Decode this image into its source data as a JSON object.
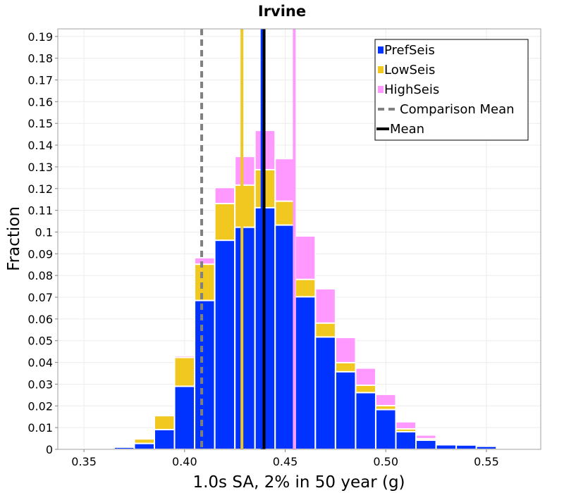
{
  "chart_data": {
    "type": "bar",
    "title": "Irvine",
    "xlabel": "1.0s SA, 2% in 50 year (g)",
    "ylabel": "Fraction",
    "xlim": [
      0.337,
      0.577
    ],
    "ylim": [
      0,
      0.1935
    ],
    "bin_width": 0.01,
    "x_ticks": [
      "0.35",
      "0.40",
      "0.45",
      "0.50",
      "0.55"
    ],
    "y_ticks": [
      "0",
      "0.01",
      "0.02",
      "0.03",
      "0.04",
      "0.05",
      "0.06",
      "0.07",
      "0.08",
      "0.09",
      "0.1",
      "0.11",
      "0.12",
      "0.13",
      "0.14",
      "0.15",
      "0.16",
      "0.17",
      "0.18",
      "0.19"
    ],
    "bin_centers": [
      0.35,
      0.36,
      0.37,
      0.38,
      0.39,
      0.4,
      0.41,
      0.42,
      0.43,
      0.44,
      0.45,
      0.46,
      0.47,
      0.48,
      0.49,
      0.5,
      0.51,
      0.52,
      0.53,
      0.54,
      0.55,
      0.56,
      0.57
    ],
    "series": [
      {
        "name": "PrefSeis",
        "color": "#0033ff",
        "values": [
          0.0002,
          0.0005,
          0.001,
          0.0027,
          0.0091,
          0.029,
          0.0685,
          0.0962,
          0.1022,
          0.1112,
          0.1032,
          0.0702,
          0.0517,
          0.0357,
          0.0261,
          0.0183,
          0.0081,
          0.0042,
          0.0021,
          0.002,
          0.0014,
          0.0003,
          0.0001
        ]
      },
      {
        "name": "LowSeis",
        "color": "#f0c820",
        "values": [
          0.0003,
          0.0007,
          0.0015,
          0.0048,
          0.0155,
          0.0423,
          0.0852,
          0.1131,
          0.1216,
          0.1287,
          0.1142,
          0.0782,
          0.0581,
          0.0399,
          0.0295,
          0.0201,
          0.0094,
          0.0049,
          0.0025,
          0.0022,
          0.0015,
          0.0004,
          0.0001
        ]
      },
      {
        "name": "HighSeis",
        "color": "#ff99ff",
        "values": [
          0.0003,
          0.0007,
          0.0015,
          0.005,
          0.0158,
          0.0431,
          0.0882,
          0.1205,
          0.1348,
          0.1468,
          0.1338,
          0.0982,
          0.0739,
          0.0515,
          0.0374,
          0.0253,
          0.0127,
          0.0066,
          0.0031,
          0.0028,
          0.0019,
          0.0005,
          0.0001
        ]
      }
    ],
    "mean_lines": [
      {
        "series": "LowSeis",
        "x": 0.4285,
        "color": "#f0c820",
        "style": "solid"
      },
      {
        "series": "HighSeis",
        "x": 0.4545,
        "color": "#ff99ff",
        "style": "solid"
      },
      {
        "series": "PrefSeis",
        "x": 0.4385,
        "color": "#0033ff",
        "style": "solid"
      },
      {
        "name": "Mean",
        "x": 0.4395,
        "color": "#000000",
        "style": "solid"
      },
      {
        "name": "Comparison Mean",
        "x": 0.4085,
        "color": "#808080",
        "style": "dashed"
      }
    ],
    "legend": {
      "position": "top-right",
      "items": [
        {
          "label": "PrefSeis",
          "kind": "box",
          "color": "#0033ff"
        },
        {
          "label": "LowSeis",
          "kind": "box",
          "color": "#f0c820"
        },
        {
          "label": "HighSeis",
          "kind": "box",
          "color": "#ff99ff"
        },
        {
          "label": "Comparison Mean",
          "kind": "dashed-line",
          "color": "#808080"
        },
        {
          "label": "Mean",
          "kind": "line",
          "color": "#000000"
        }
      ]
    },
    "grid": true
  }
}
